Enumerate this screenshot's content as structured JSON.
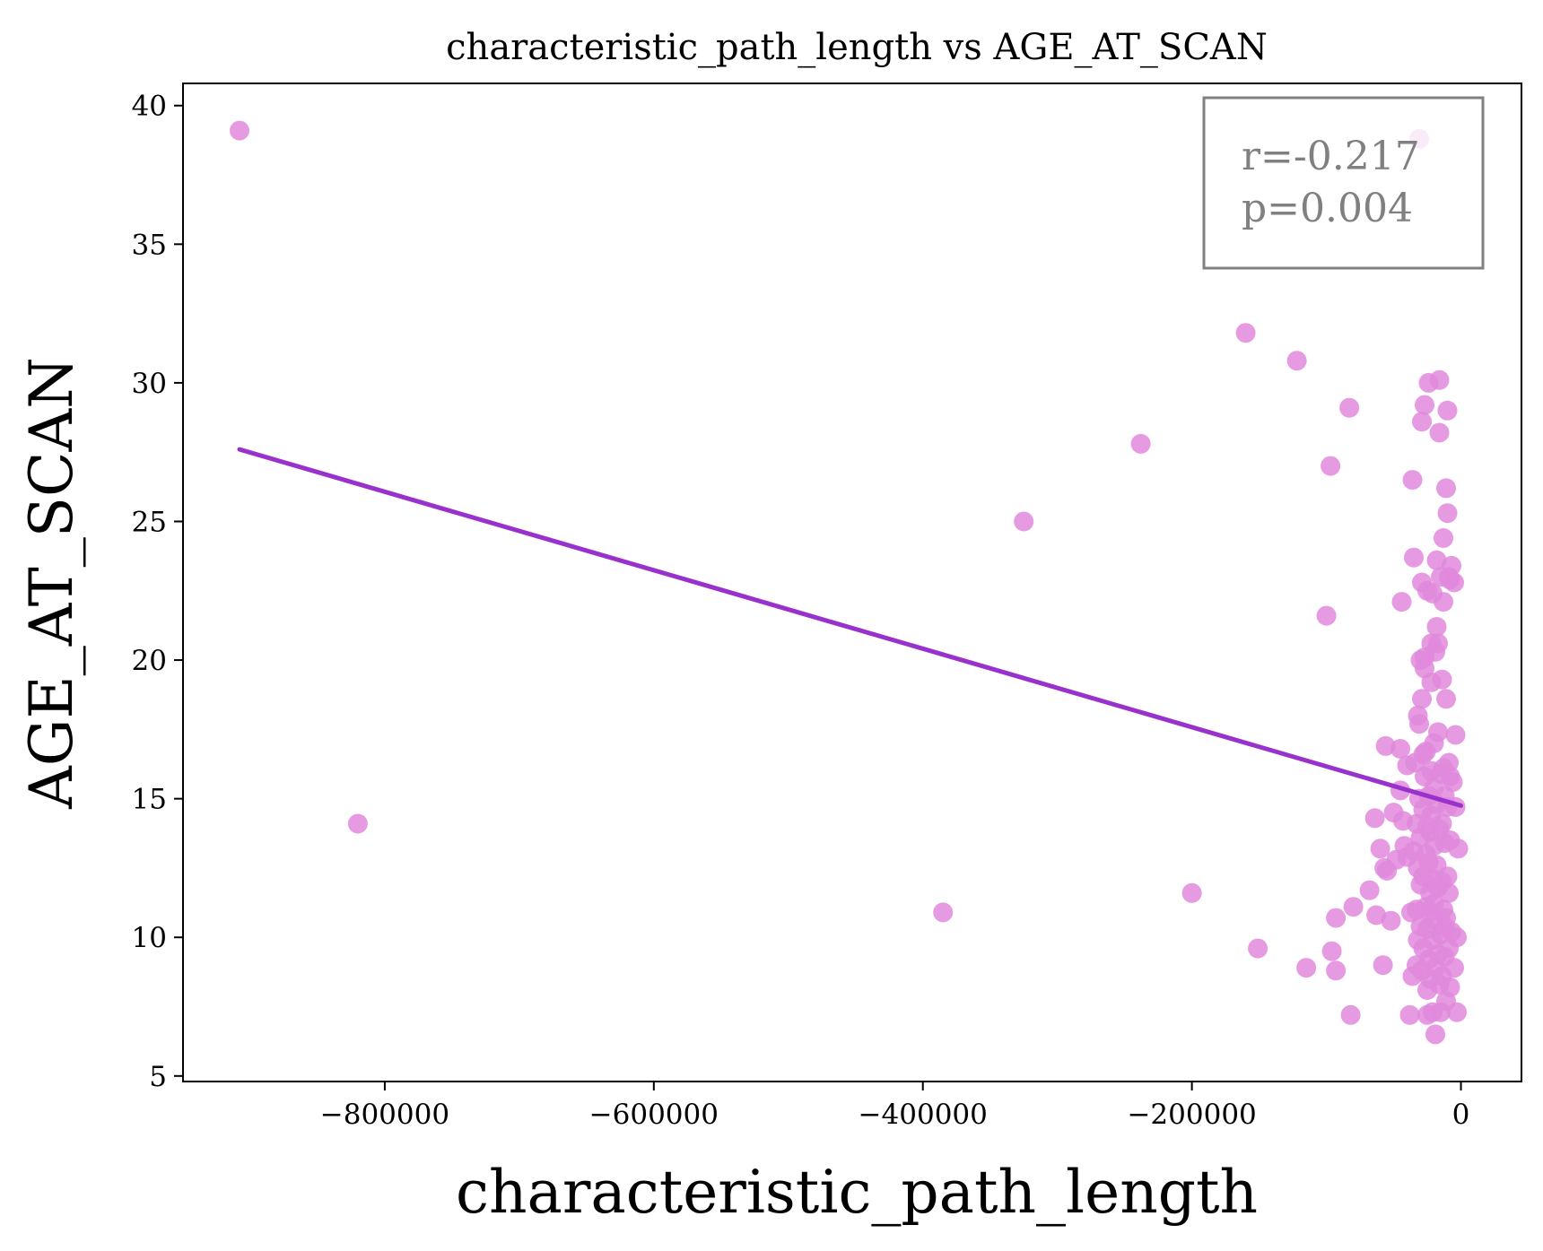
{
  "chart_data": {
    "type": "scatter",
    "title": "characteristic_path_length vs AGE_AT_SCAN",
    "xlabel": "characteristic_path_length",
    "ylabel": "AGE_AT_SCAN",
    "xlim": [
      -950000,
      45000
    ],
    "ylim": [
      4.8,
      40.8
    ],
    "x_ticks": [
      -800000,
      -600000,
      -400000,
      -200000,
      0
    ],
    "x_tick_labels": [
      "−800000",
      "−600000",
      "−400000",
      "−200000",
      "0"
    ],
    "y_ticks": [
      5,
      10,
      15,
      20,
      25,
      30,
      35,
      40
    ],
    "y_tick_labels": [
      "5",
      "10",
      "15",
      "20",
      "25",
      "30",
      "35",
      "40"
    ],
    "grid": false,
    "point_color": "#e088dc",
    "line_color": "#9932cc",
    "annotation_border_color": "#808080",
    "annotation_text_color": "#808080",
    "annotation": {
      "r_text": "r=-0.217",
      "p_text": "p=0.004",
      "placement": "top-right"
    },
    "regression_line": {
      "x": [
        -908000,
        0
      ],
      "y": [
        27.6,
        14.75
      ]
    },
    "points": [
      [
        -908000,
        39.1
      ],
      [
        -820000,
        14.1
      ],
      [
        -385000,
        10.9
      ],
      [
        -325000,
        25.0
      ],
      [
        -238000,
        27.8
      ],
      [
        -200000,
        11.6
      ],
      [
        -160000,
        31.8
      ],
      [
        -151000,
        9.6
      ],
      [
        -122000,
        30.8
      ],
      [
        -115000,
        8.9
      ],
      [
        -100000,
        21.6
      ],
      [
        -97000,
        27.0
      ],
      [
        -96000,
        9.5
      ],
      [
        -93000,
        8.8
      ],
      [
        -93000,
        10.7
      ],
      [
        -83000,
        29.1
      ],
      [
        -82000,
        7.2
      ],
      [
        -80000,
        11.1
      ],
      [
        -68000,
        11.7
      ],
      [
        -64000,
        14.3
      ],
      [
        -63000,
        10.8
      ],
      [
        -60000,
        13.2
      ],
      [
        -58000,
        9.0
      ],
      [
        -57000,
        12.5
      ],
      [
        -56000,
        16.9
      ],
      [
        -55000,
        12.4
      ],
      [
        -52000,
        10.6
      ],
      [
        -50000,
        14.5
      ],
      [
        -48000,
        12.8
      ],
      [
        -45000,
        16.8
      ],
      [
        -45000,
        15.3
      ],
      [
        -44000,
        22.1
      ],
      [
        -43000,
        14.2
      ],
      [
        -42000,
        13.3
      ],
      [
        -40000,
        12.9
      ],
      [
        -40000,
        16.2
      ],
      [
        -38000,
        7.2
      ],
      [
        -37000,
        10.9
      ],
      [
        -36000,
        26.5
      ],
      [
        -36000,
        8.6
      ],
      [
        -35000,
        23.7
      ],
      [
        -35000,
        13.1
      ],
      [
        -34000,
        16.3
      ],
      [
        -33000,
        9.0
      ],
      [
        -33000,
        11.0
      ],
      [
        -33000,
        14.1
      ],
      [
        -32000,
        12.5
      ],
      [
        -32000,
        9.9
      ],
      [
        -32000,
        18.0
      ],
      [
        -31000,
        38.8
      ],
      [
        -31000,
        17.7
      ],
      [
        -31000,
        15.0
      ],
      [
        -30000,
        20.0
      ],
      [
        -30000,
        10.4
      ],
      [
        -30000,
        13.6
      ],
      [
        -30000,
        11.9
      ],
      [
        -29000,
        28.6
      ],
      [
        -29000,
        22.8
      ],
      [
        -29000,
        18.6
      ],
      [
        -29000,
        8.8
      ],
      [
        -28000,
        16.6
      ],
      [
        -28000,
        14.6
      ],
      [
        -28000,
        12.2
      ],
      [
        -28000,
        9.6
      ],
      [
        -27000,
        29.2
      ],
      [
        -27000,
        20.1
      ],
      [
        -27000,
        19.7
      ],
      [
        -27000,
        15.8
      ],
      [
        -26000,
        11.1
      ],
      [
        -26000,
        13.0
      ],
      [
        -26000,
        16.7
      ],
      [
        -25000,
        7.2
      ],
      [
        -25000,
        8.1
      ],
      [
        -25000,
        10.3
      ],
      [
        -25000,
        14.0
      ],
      [
        -25000,
        22.5
      ],
      [
        -24000,
        30.0
      ],
      [
        -24000,
        12.7
      ],
      [
        -24000,
        9.2
      ],
      [
        -24000,
        15.1
      ],
      [
        -23000,
        11.6
      ],
      [
        -23000,
        13.8
      ],
      [
        -23000,
        8.5
      ],
      [
        -23000,
        10.9
      ],
      [
        -22000,
        20.6
      ],
      [
        -22000,
        19.2
      ],
      [
        -22000,
        14.4
      ],
      [
        -22000,
        16.0
      ],
      [
        -21000,
        7.3
      ],
      [
        -21000,
        9.9
      ],
      [
        -21000,
        12.1
      ],
      [
        -21000,
        22.4
      ],
      [
        -20000,
        17.0
      ],
      [
        -20000,
        15.4
      ],
      [
        -20000,
        13.3
      ],
      [
        -20000,
        11.2
      ],
      [
        -19000,
        20.3
      ],
      [
        -19000,
        8.9
      ],
      [
        -19000,
        10.6
      ],
      [
        -19000,
        6.5
      ],
      [
        -18000,
        23.6
      ],
      [
        -18000,
        21.2
      ],
      [
        -18000,
        14.8
      ],
      [
        -18000,
        12.6
      ],
      [
        -17000,
        17.4
      ],
      [
        -17000,
        9.4
      ],
      [
        -17000,
        11.8
      ],
      [
        -17000,
        20.6
      ],
      [
        -16000,
        30.1
      ],
      [
        -16000,
        28.2
      ],
      [
        -16000,
        13.9
      ],
      [
        -16000,
        8.3
      ],
      [
        -15000,
        23.0
      ],
      [
        -15000,
        15.9
      ],
      [
        -15000,
        10.1
      ],
      [
        -15000,
        7.3
      ],
      [
        -14000,
        19.3
      ],
      [
        -14000,
        12.0
      ],
      [
        -14000,
        14.1
      ],
      [
        -14000,
        8.6
      ],
      [
        -13000,
        24.4
      ],
      [
        -13000,
        22.1
      ],
      [
        -13000,
        16.1
      ],
      [
        -13000,
        11.0
      ],
      [
        -12000,
        10.4
      ],
      [
        -12000,
        13.4
      ],
      [
        -12000,
        9.3
      ],
      [
        -12000,
        15.1
      ],
      [
        -11000,
        26.2
      ],
      [
        -11000,
        18.6
      ],
      [
        -11000,
        7.7
      ],
      [
        -11000,
        10.7
      ],
      [
        -10000,
        25.3
      ],
      [
        -10000,
        29.0
      ],
      [
        -10000,
        12.2
      ],
      [
        -10000,
        14.7
      ],
      [
        -9000,
        16.3
      ],
      [
        -9000,
        23.0
      ],
      [
        -9000,
        9.6
      ],
      [
        -9000,
        11.6
      ],
      [
        -8000,
        22.9
      ],
      [
        -8000,
        13.5
      ],
      [
        -8000,
        15.8
      ],
      [
        -8000,
        8.2
      ],
      [
        -7000,
        23.4
      ],
      [
        -7000,
        10.2
      ],
      [
        -6000,
        15.6
      ],
      [
        -5000,
        22.8
      ],
      [
        -5000,
        8.9
      ],
      [
        -4000,
        17.3
      ],
      [
        -4000,
        14.7
      ],
      [
        -3000,
        10.0
      ],
      [
        -3000,
        7.3
      ],
      [
        -2000,
        13.2
      ]
    ]
  }
}
